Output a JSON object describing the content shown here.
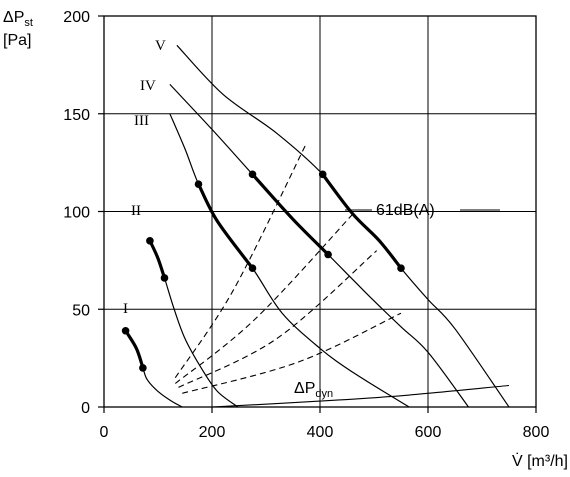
{
  "chart_data": {
    "type": "line",
    "title": "",
    "xlabel": "V̇ [m³/h]",
    "ylabel_symbol": "ΔP",
    "ylabel_sub": "st",
    "ylabel_unit": "[Pa]",
    "xlim": [
      0,
      800
    ],
    "ylim": [
      0,
      200
    ],
    "xticks": [
      "0",
      "200",
      "400",
      "600",
      "800"
    ],
    "yticks": [
      "0",
      "50",
      "100",
      "150",
      "200"
    ],
    "grid": true,
    "series": [
      {
        "name": "I",
        "x": [
          40,
          60,
          72,
          80,
          100,
          125,
          145
        ],
        "y": [
          39,
          30,
          20,
          14,
          8,
          3,
          0
        ]
      },
      {
        "name": "II",
        "x": [
          85,
          100,
          112,
          130,
          150,
          180,
          210,
          248
        ],
        "y": [
          85,
          76,
          66,
          50,
          35,
          20,
          8,
          0
        ]
      },
      {
        "name": "III",
        "x": [
          122,
          150,
          175,
          210,
          275,
          330,
          400,
          465,
          565
        ],
        "y": [
          150,
          132,
          114,
          95,
          71,
          48,
          30,
          17,
          0
        ]
      },
      {
        "name": "IV",
        "x": [
          122,
          200,
          275,
          350,
          415,
          490,
          550,
          600,
          675
        ],
        "y": [
          165,
          142,
          119,
          96,
          78,
          57,
          41,
          28,
          0
        ]
      },
      {
        "name": "V",
        "x": [
          135,
          220,
          320,
          405,
          460,
          510,
          550,
          600,
          650,
          750
        ],
        "y": [
          185,
          160,
          140,
          119,
          99,
          85,
          71,
          55,
          40,
          0
        ]
      }
    ],
    "operating_segments": [
      {
        "curve": "I",
        "x": [
          40,
          60,
          72
        ],
        "y": [
          39,
          30,
          20
        ]
      },
      {
        "curve": "II",
        "x": [
          85,
          100,
          112
        ],
        "y": [
          85,
          76,
          66
        ]
      },
      {
        "curve": "III",
        "x": [
          175,
          210,
          275
        ],
        "y": [
          114,
          95,
          71
        ]
      },
      {
        "curve": "IV",
        "x": [
          275,
          350,
          415
        ],
        "y": [
          119,
          96,
          78
        ]
      },
      {
        "curve": "V",
        "x": [
          405,
          460,
          510,
          550
        ],
        "y": [
          119,
          99,
          85,
          71
        ]
      }
    ],
    "points": [
      {
        "x": 40,
        "y": 39
      },
      {
        "x": 72,
        "y": 20
      },
      {
        "x": 85,
        "y": 85
      },
      {
        "x": 112,
        "y": 66
      },
      {
        "x": 175,
        "y": 114
      },
      {
        "x": 275,
        "y": 71
      },
      {
        "x": 275,
        "y": 119
      },
      {
        "x": 415,
        "y": 78
      },
      {
        "x": 405,
        "y": 119
      },
      {
        "x": 550,
        "y": 71
      }
    ],
    "system_curves": [
      {
        "x": [
          132,
          240,
          375
        ],
        "y": [
          15,
          60,
          135
        ]
      },
      {
        "x": [
          132,
          280,
          465
        ],
        "y": [
          12,
          45,
          100
        ]
      },
      {
        "x": [
          138,
          320,
          505
        ],
        "y": [
          10,
          35,
          80
        ]
      },
      {
        "x": [
          145,
          360,
          550
        ],
        "y": [
          7,
          23,
          48
        ]
      }
    ],
    "dyn_curve": {
      "x": [
        200,
        400,
        560,
        750
      ],
      "y": [
        0,
        3,
        6,
        11
      ]
    },
    "annotations": {
      "noise_label": "61dB(A)",
      "dyn_label_symbol": "ΔP",
      "dyn_label_sub": "dyn"
    }
  }
}
